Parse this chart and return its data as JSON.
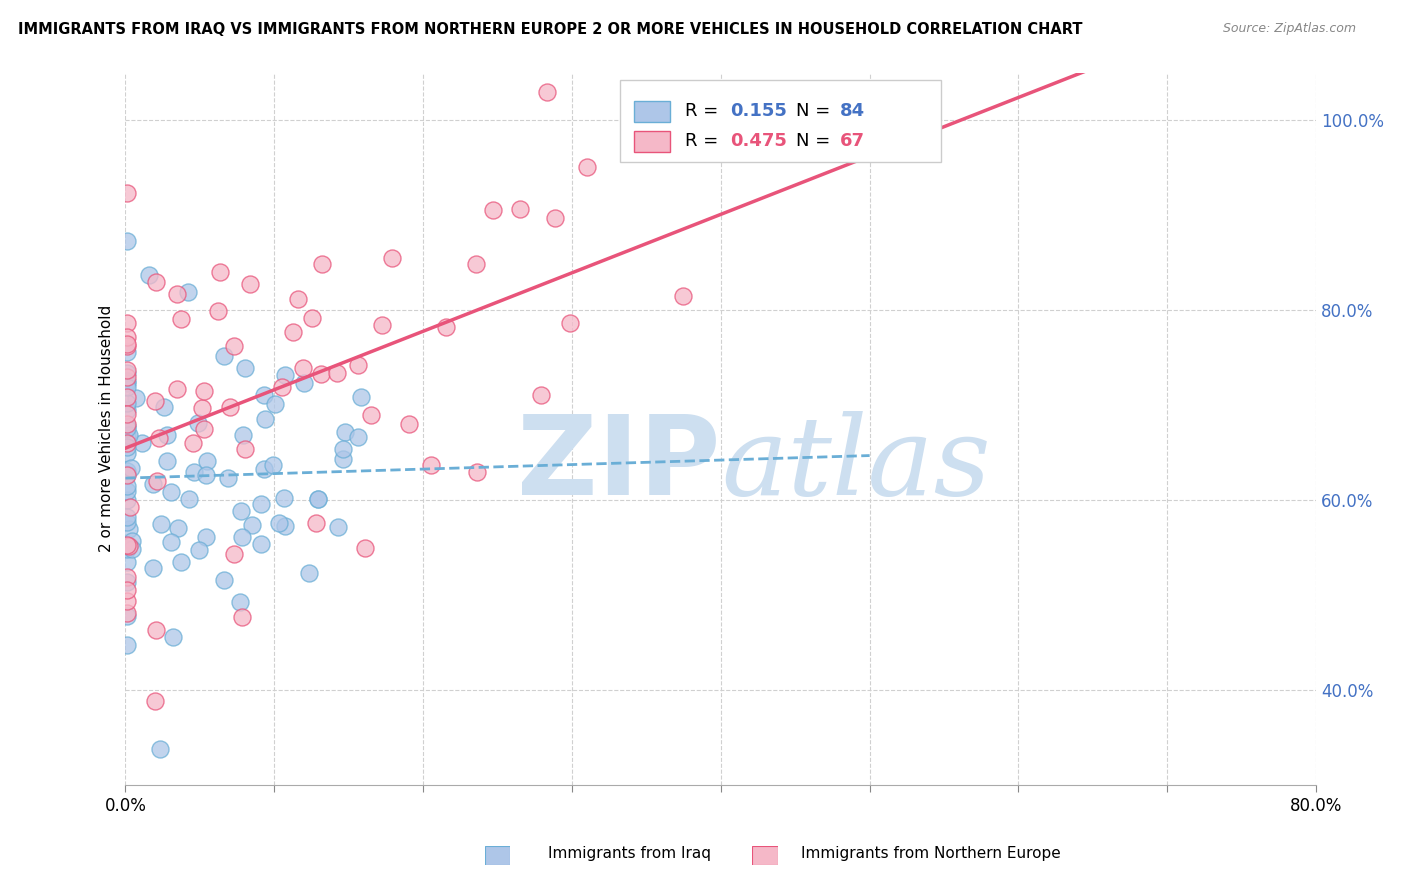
{
  "title": "IMMIGRANTS FROM IRAQ VS IMMIGRANTS FROM NORTHERN EUROPE 2 OR MORE VEHICLES IN HOUSEHOLD CORRELATION CHART",
  "source": "Source: ZipAtlas.com",
  "ylabel": "2 or more Vehicles in Household",
  "x_label_iraq": "Immigrants from Iraq",
  "x_label_north": "Immigrants from Northern Europe",
  "xlim": [
    0.0,
    0.8
  ],
  "ylim": [
    0.3,
    1.05
  ],
  "yticks": [
    0.4,
    0.6,
    0.8,
    1.0
  ],
  "R_iraq": 0.155,
  "N_iraq": 84,
  "R_north": 0.475,
  "N_north": 67,
  "color_iraq": "#aec6e8",
  "color_north": "#f5b8c8",
  "line_iraq_color": "#6aaed6",
  "line_north_color": "#e8547a",
  "label_color": "#4472c4",
  "watermark_zip": "ZIP",
  "watermark_atlas": "atlas",
  "watermark_color": "#cddff0",
  "background": "#ffffff"
}
